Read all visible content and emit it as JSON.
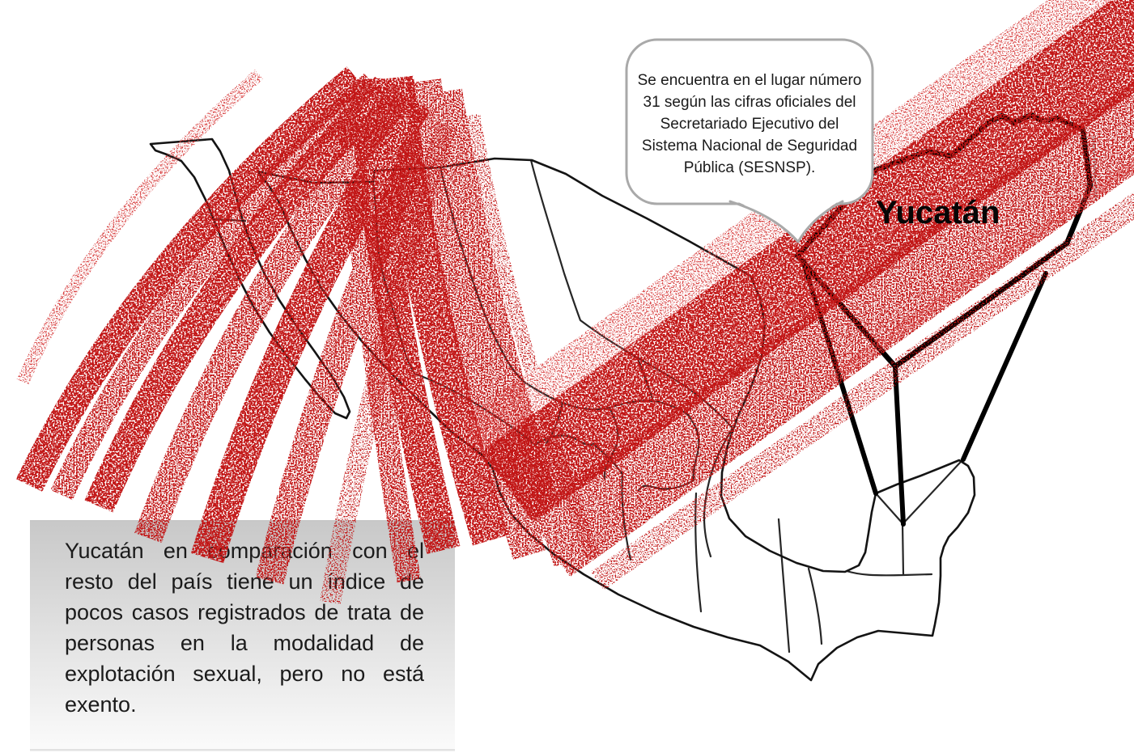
{
  "speech_bubble": {
    "lines": [
      "Se encuentra en el lugar número",
      "31 según las cifras oficiales del",
      "Secretariado Ejecutivo del",
      "Sistema Nacional de Seguridad",
      "Pública (SESNSP)."
    ]
  },
  "state_label": "Yucatán",
  "infobox": {
    "lines": [
      "Yucatán en comparación con el",
      "resto del país tiene un índice de",
      "pocos casos registrados de trata de",
      "personas en la modalidad de",
      "explotación sexual, pero no está",
      "exento."
    ]
  },
  "colors": {
    "crayon_red": "#c21818",
    "crayon_red_light": "#d84343",
    "map_outline": "#141414",
    "highlight": "#000000",
    "bubble_border": "#a9a9a9",
    "bubble_fill": "#ffffff",
    "infobox_gradient_top": "#c8c8c8",
    "infobox_gradient_bottom": "#fbfbfb",
    "text_color": "#1b1b1b"
  }
}
